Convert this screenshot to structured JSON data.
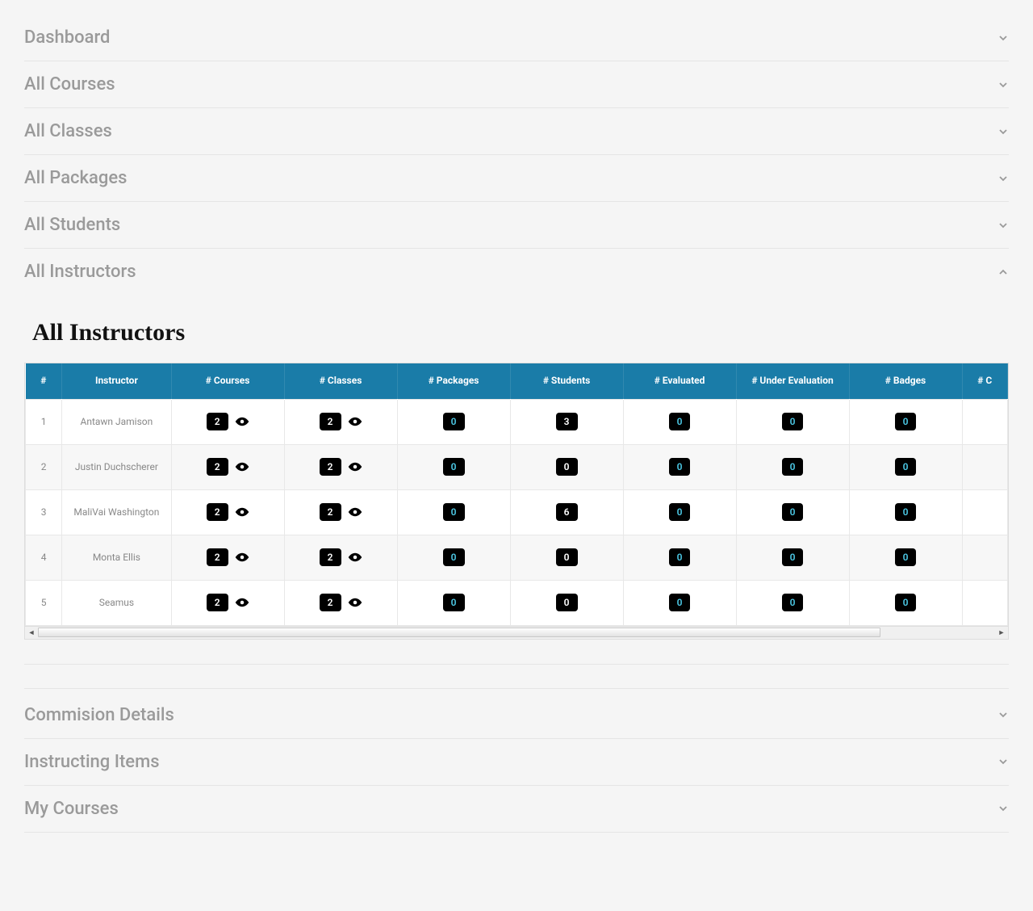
{
  "nav": {
    "items": [
      {
        "label": "Dashboard",
        "expanded": false
      },
      {
        "label": "All Courses",
        "expanded": false
      },
      {
        "label": "All Classes",
        "expanded": false
      },
      {
        "label": "All Packages",
        "expanded": false
      },
      {
        "label": "All Students",
        "expanded": false
      },
      {
        "label": "All Instructors",
        "expanded": true
      }
    ],
    "below": [
      {
        "label": "Commision Details",
        "expanded": false
      },
      {
        "label": "Instructing Items",
        "expanded": false
      },
      {
        "label": "My Courses",
        "expanded": false
      }
    ]
  },
  "panel": {
    "title": "All Instructors"
  },
  "table": {
    "header_bg": "#1a7ca8",
    "header_color": "#ffffff",
    "pill_bg": "#000000",
    "pill_cyan": "#4cc9e6",
    "columns": [
      "#",
      "Instructor",
      "# Courses",
      "# Classes",
      "# Packages",
      "# Students",
      "# Evaluated",
      "# Under Evaluation",
      "# Badges",
      "# C"
    ],
    "rows": [
      {
        "idx": "1",
        "instructor": "Antawn Jamison",
        "courses": "2",
        "classes": "2",
        "packages": "0",
        "students": "3",
        "evaluated": "0",
        "under": "0",
        "badges": "0"
      },
      {
        "idx": "2",
        "instructor": "Justin Duchscherer",
        "courses": "2",
        "classes": "2",
        "packages": "0",
        "students": "0",
        "evaluated": "0",
        "under": "0",
        "badges": "0"
      },
      {
        "idx": "3",
        "instructor": "MaliVai Washington",
        "courses": "2",
        "classes": "2",
        "packages": "0",
        "students": "6",
        "evaluated": "0",
        "under": "0",
        "badges": "0"
      },
      {
        "idx": "4",
        "instructor": "Monta Ellis",
        "courses": "2",
        "classes": "2",
        "packages": "0",
        "students": "0",
        "evaluated": "0",
        "under": "0",
        "badges": "0"
      },
      {
        "idx": "5",
        "instructor": "Seamus",
        "courses": "2",
        "classes": "2",
        "packages": "0",
        "students": "0",
        "evaluated": "0",
        "under": "0",
        "badges": "0"
      }
    ]
  }
}
